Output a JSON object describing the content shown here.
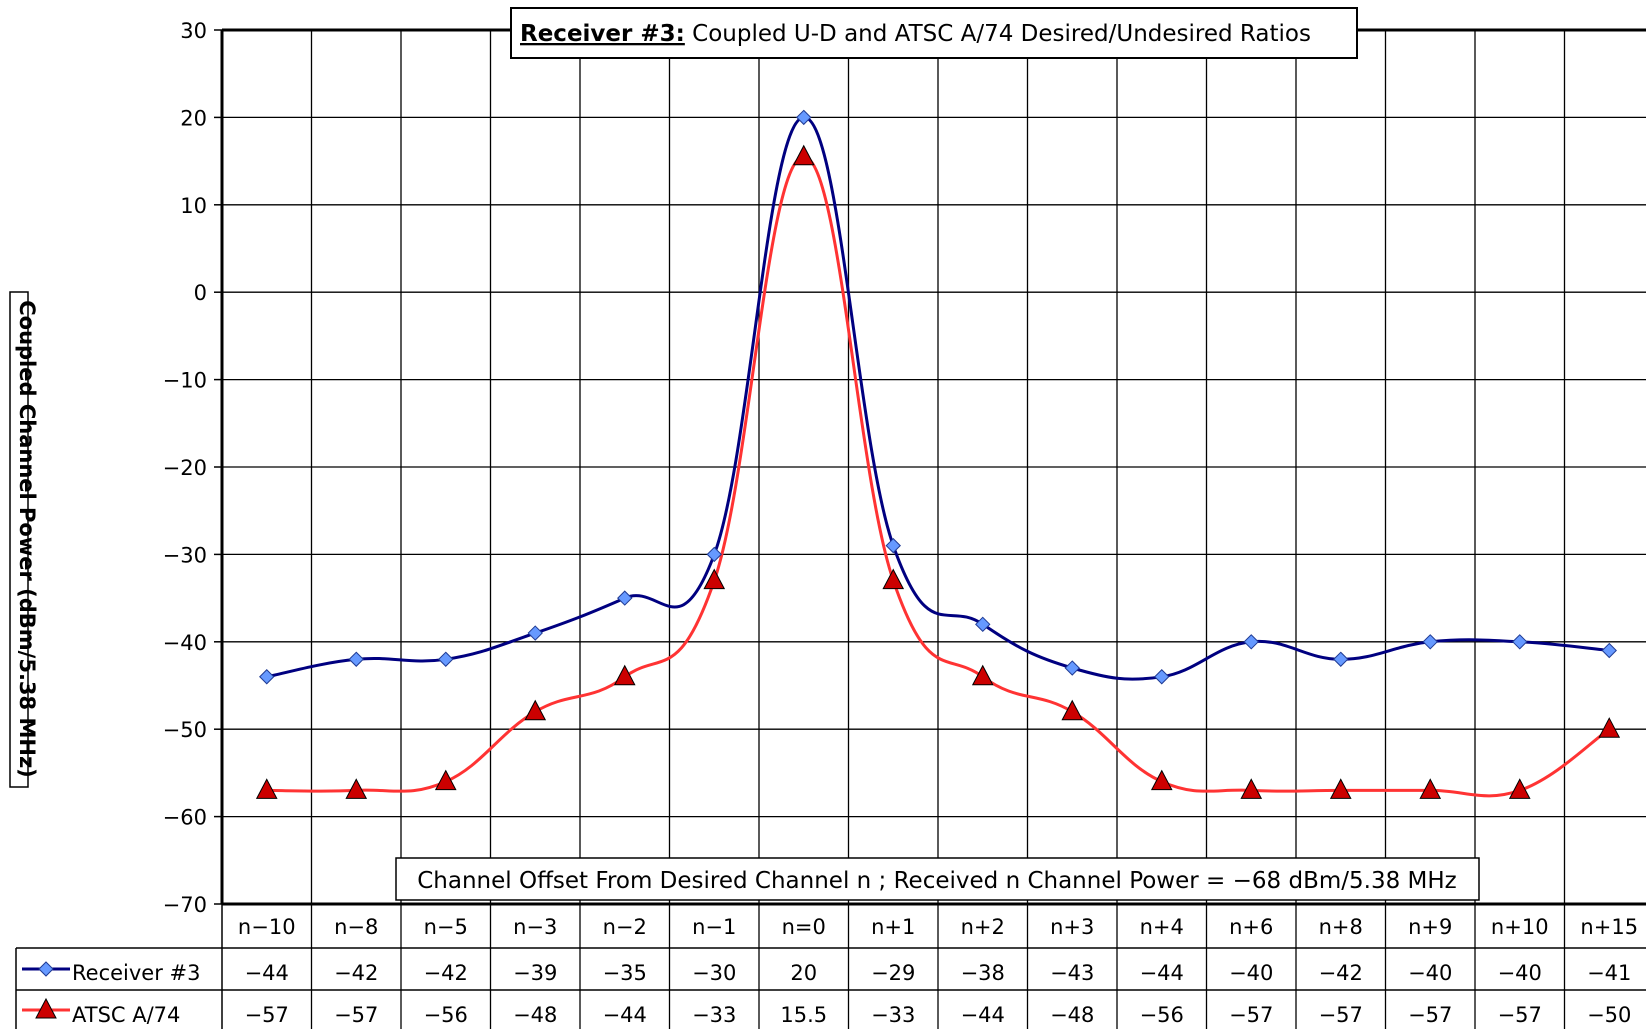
{
  "chart_data": {
    "type": "line",
    "title_bold": "Receiver #3:",
    "title_rest": " Coupled U-D and ATSC A/74 Desired/Undesired Ratios",
    "xlabel": "Channel Offset From Desired Channel n ; Received n Channel Power = −68 dBm/5.38 MHz",
    "ylabel": "Coupled Channel Power (dBm/5.38 MHz)",
    "ylim": [
      -70,
      30
    ],
    "yticks": [
      "30",
      "20",
      "10",
      "0",
      "−10",
      "−20",
      "−30",
      "−40",
      "−50",
      "−60",
      "−70"
    ],
    "grid": true,
    "legend": "data-table",
    "categories": [
      "n−10",
      "n−8",
      "n−5",
      "n−3",
      "n−2",
      "n−1",
      "n=0",
      "n+1",
      "n+2",
      "n+3",
      "n+4",
      "n+6",
      "n+8",
      "n+9",
      "n+10",
      "n+15"
    ],
    "series": [
      {
        "name": "Receiver #3",
        "color": "#000080",
        "marker_color": "#6699ff",
        "marker": "diamond",
        "values": [
          -44,
          -42,
          -42,
          -39,
          -35,
          -30,
          20,
          -29,
          -38,
          -43,
          -44,
          -40,
          -42,
          -40,
          -40,
          -41
        ],
        "labels": [
          "−44",
          "−42",
          "−42",
          "−39",
          "−35",
          "−30",
          "20",
          "−29",
          "−38",
          "−43",
          "−44",
          "−40",
          "−42",
          "−40",
          "−40",
          "−41"
        ]
      },
      {
        "name": "ATSC A/74",
        "color": "#ff3333",
        "marker_color": "#cc0000",
        "marker": "triangle",
        "values": [
          -57,
          -57,
          -56,
          -48,
          -44,
          -33,
          15.5,
          -33,
          -44,
          -48,
          -56,
          -57,
          -57,
          -57,
          -57,
          -50
        ],
        "labels": [
          "−57",
          "−57",
          "−56",
          "−48",
          "−44",
          "−33",
          "15.5",
          "−33",
          "−44",
          "−48",
          "−56",
          "−57",
          "−57",
          "−57",
          "−57",
          "−50"
        ]
      }
    ]
  }
}
